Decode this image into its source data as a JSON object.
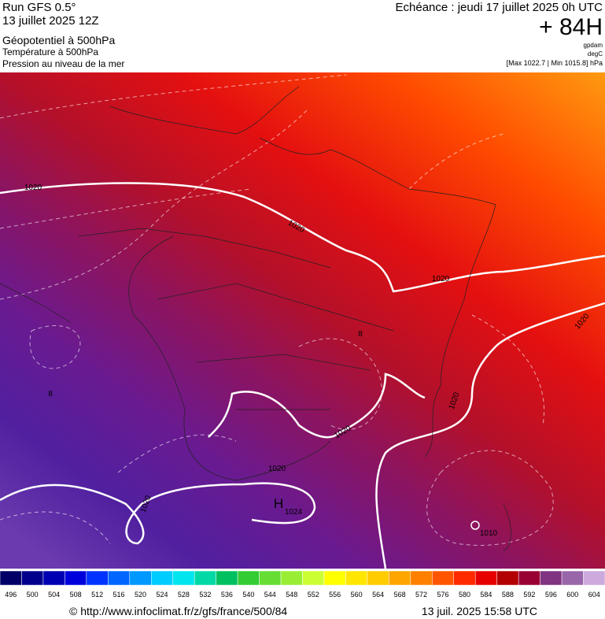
{
  "header": {
    "run": "Run GFS 0.5°",
    "date": "13 juillet 2025 12Z",
    "line1": "Géopotentiel à 500hPa",
    "line2": "Température à 500hPa",
    "line3": "Pression au niveau de la mer",
    "valid": "Echéance : jeudi 17 juillet 2025 0h UTC",
    "lead": "+ 84H",
    "unit1": "gpdam",
    "unit2": "degC",
    "range": "[Max 1022.7 | Min 1015.8] hPa"
  },
  "map": {
    "labels": [
      "1020",
      "1020",
      "1020",
      "1020",
      "1020",
      "1020",
      "1020",
      "1020",
      "H",
      "1024",
      "1010",
      "8",
      "8"
    ]
  },
  "colorbar": {
    "ticks": [
      496,
      500,
      504,
      508,
      512,
      516,
      520,
      524,
      528,
      532,
      536,
      540,
      544,
      548,
      552,
      556,
      560,
      564,
      568,
      572,
      576,
      580,
      584,
      588,
      592,
      596,
      600,
      604
    ],
    "colors": [
      "#000066",
      "#00008c",
      "#0000b3",
      "#0000dd",
      "#0033ff",
      "#0066ff",
      "#0099ff",
      "#00ccff",
      "#00e5ee",
      "#00d9a6",
      "#00c060",
      "#33cc33",
      "#66dd33",
      "#99ee33",
      "#ccff33",
      "#ffff00",
      "#ffe600",
      "#ffcc00",
      "#ffa500",
      "#ff8000",
      "#ff5500",
      "#ff2a00",
      "#e60000",
      "#b30000",
      "#990033",
      "#7f3380",
      "#9966aa",
      "#ccaadd"
    ]
  },
  "footer": {
    "source": "© http://www.infoclimat.fr/z/gfs/france/500/84",
    "generated": "13 juil. 2025 15:58 UTC"
  }
}
